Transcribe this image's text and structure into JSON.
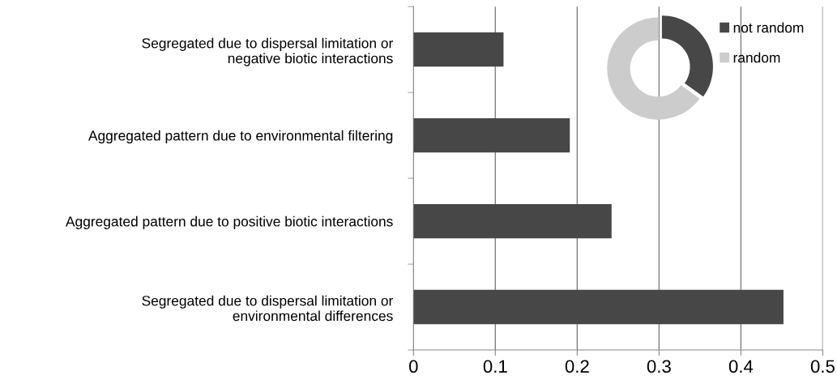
{
  "chart_data": [
    {
      "type": "bar",
      "orientation": "horizontal",
      "categories": [
        "Segregated due to dispersal limitation or\nnegative biotic interactions",
        "Aggregated pattern due to environmental filtering",
        "Aggregated pattern due to positive biotic interactions",
        "Segregated due to dispersal limitation or\nenvironmental differences"
      ],
      "values": [
        0.11,
        0.191,
        0.242,
        0.452
      ],
      "color": "#474747",
      "xlim": [
        0,
        0.5
      ],
      "xticks": [
        0,
        0.1,
        0.2,
        0.3,
        0.4,
        0.5
      ],
      "grid": "x"
    },
    {
      "type": "donut",
      "categories": [
        "not random",
        "random"
      ],
      "values": [
        35,
        65
      ],
      "colors": [
        "#474747",
        "#cccccc"
      ],
      "legend": "top right"
    }
  ]
}
